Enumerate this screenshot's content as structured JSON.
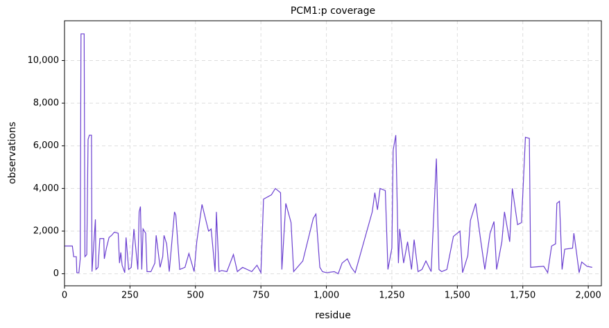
{
  "chart_data": {
    "type": "line",
    "title": "PCM1:p coverage",
    "x_label": "residue",
    "y_label": "observations",
    "color": "#6a3fd0",
    "grid": true,
    "xlim": [
      0,
      2050
    ],
    "ylim": [
      -565,
      11865
    ],
    "xticks": [
      0,
      250,
      500,
      750,
      {
        "value": 1000,
        "label": "1,000"
      },
      {
        "value": 1250,
        "label": "1,250"
      },
      {
        "value": 1500,
        "label": "1,500"
      },
      {
        "value": 1750,
        "label": "1,750"
      },
      {
        "value": 2000,
        "label": "2,000"
      }
    ],
    "yticks": [
      0,
      {
        "value": 2000,
        "label": "2,000"
      },
      {
        "value": 4000,
        "label": "4,000"
      },
      {
        "value": 6000,
        "label": "6,000"
      },
      {
        "value": 8000,
        "label": "8,000"
      },
      {
        "value": 10000,
        "label": "10,000"
      }
    ],
    "x": [
      0,
      30,
      35,
      45,
      47,
      55,
      60,
      63,
      75,
      78,
      85,
      90,
      95,
      103,
      105,
      118,
      120,
      128,
      135,
      150,
      152,
      160,
      170,
      180,
      190,
      205,
      210,
      215,
      220,
      230,
      235,
      245,
      255,
      265,
      280,
      285,
      290,
      295,
      300,
      310,
      315,
      330,
      345,
      350,
      365,
      375,
      380,
      390,
      400,
      420,
      425,
      440,
      460,
      475,
      495,
      505,
      525,
      550,
      560,
      575,
      580,
      590,
      600,
      620,
      645,
      660,
      680,
      715,
      735,
      750,
      760,
      790,
      805,
      825,
      830,
      845,
      865,
      875,
      910,
      950,
      960,
      975,
      985,
      1000,
      1030,
      1045,
      1060,
      1080,
      1095,
      1110,
      1175,
      1185,
      1195,
      1205,
      1225,
      1235,
      1250,
      1255,
      1265,
      1275,
      1280,
      1295,
      1310,
      1325,
      1335,
      1350,
      1365,
      1380,
      1400,
      1420,
      1430,
      1440,
      1460,
      1485,
      1510,
      1520,
      1540,
      1550,
      1570,
      1590,
      1605,
      1625,
      1640,
      1650,
      1670,
      1680,
      1700,
      1710,
      1730,
      1745,
      1760,
      1775,
      1780,
      1830,
      1845,
      1860,
      1875,
      1880,
      1890,
      1900,
      1910,
      1940,
      1945,
      1955,
      1965,
      1975,
      1995,
      2015
    ],
    "values": [
      1300,
      1300,
      800,
      800,
      50,
      50,
      700,
      11250,
      11250,
      800,
      900,
      6300,
      6500,
      6500,
      100,
      2550,
      200,
      300,
      1650,
      1650,
      700,
      1200,
      1700,
      1800,
      1950,
      1900,
      500,
      1000,
      400,
      50,
      1700,
      200,
      300,
      2100,
      200,
      2900,
      3150,
      200,
      2100,
      1900,
      100,
      100,
      500,
      1800,
      300,
      800,
      1800,
      1400,
      100,
      2900,
      2750,
      200,
      300,
      950,
      100,
      1500,
      3250,
      2000,
      2100,
      100,
      2900,
      100,
      150,
      100,
      900,
      100,
      300,
      100,
      400,
      50,
      3500,
      3700,
      4000,
      3800,
      200,
      3300,
      2400,
      100,
      600,
      2600,
      2800,
      300,
      100,
      50,
      100,
      0,
      500,
      700,
      300,
      50,
      2900,
      3800,
      3000,
      4000,
      3900,
      200,
      1200,
      5800,
      6500,
      500,
      2100,
      500,
      1500,
      200,
      1600,
      100,
      200,
      600,
      100,
      5400,
      200,
      100,
      200,
      1750,
      2000,
      50,
      850,
      2500,
      3300,
      1500,
      200,
      1900,
      2450,
      200,
      1500,
      2900,
      1500,
      4000,
      2300,
      2400,
      6400,
      6350,
      300,
      350,
      50,
      1300,
      1400,
      3300,
      3400,
      200,
      1150,
      1200,
      1900,
      1000,
      50,
      550,
      350,
      300
    ]
  }
}
